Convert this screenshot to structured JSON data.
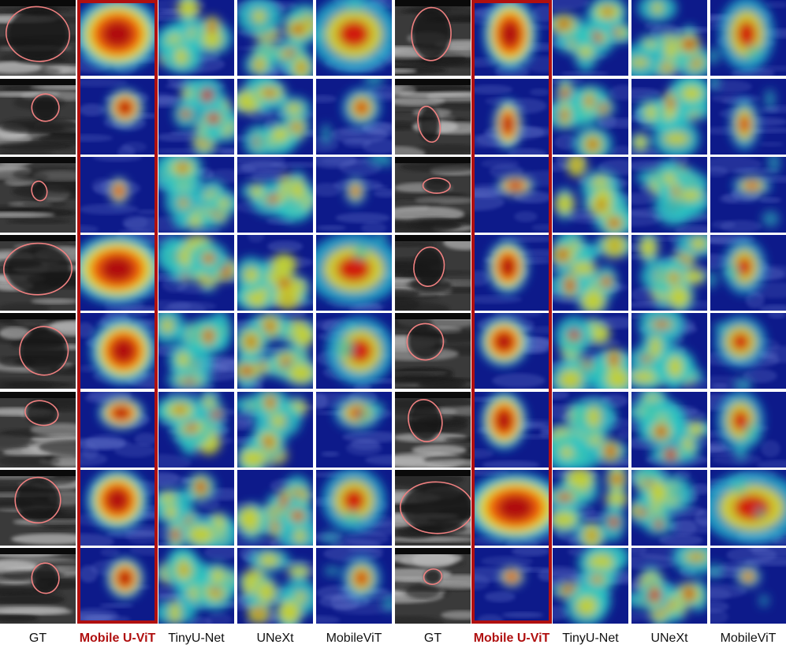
{
  "columns": [
    {
      "label": "GT",
      "kind": "gt",
      "highlight": false
    },
    {
      "label": "Mobile U-ViT",
      "kind": "heat-focused",
      "highlight": true
    },
    {
      "label": "TinyU-Net",
      "kind": "heat-diffuse",
      "highlight": false
    },
    {
      "label": "UNeXt",
      "kind": "heat-diffuse",
      "highlight": false
    },
    {
      "label": "MobileViT",
      "kind": "heat-medium",
      "highlight": false
    },
    {
      "label": "GT",
      "kind": "gt",
      "highlight": false
    },
    {
      "label": "Mobile U-ViT",
      "kind": "heat-focused",
      "highlight": true
    },
    {
      "label": "TinyU-Net",
      "kind": "heat-diffuse",
      "highlight": false
    },
    {
      "label": "UNeXt",
      "kind": "heat-diffuse",
      "highlight": false
    },
    {
      "label": "MobileViT",
      "kind": "heat-medium",
      "highlight": false
    }
  ],
  "highlight_color": "#b01010",
  "contour_color": "#f08080"
}
